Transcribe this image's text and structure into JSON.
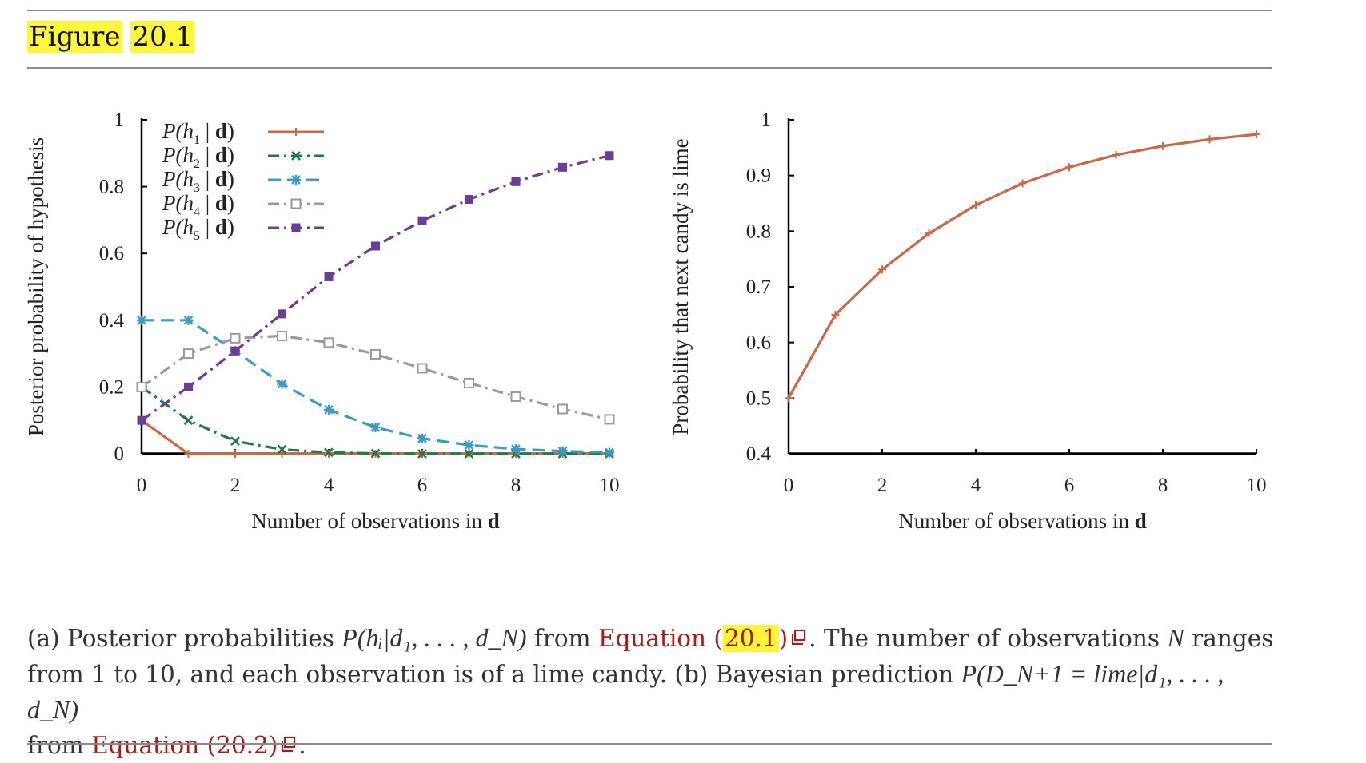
{
  "heading": {
    "word": "Figure",
    "number": "20.1"
  },
  "chart_data": [
    {
      "type": "line",
      "panel_label": "(a)",
      "xlabel_text": "Number of observations in ",
      "xlabel_bold": "d",
      "ylabel": "Posterior probability of hypothesis",
      "xlim": [
        0,
        10
      ],
      "ylim": [
        0,
        1
      ],
      "x_ticks": [
        "0",
        "2",
        "4",
        "6",
        "8",
        "10"
      ],
      "y_ticks": [
        "0",
        "0.2",
        "0.4",
        "0.6",
        "0.8",
        "1"
      ],
      "x": [
        0,
        1,
        2,
        3,
        4,
        5,
        6,
        7,
        8,
        9,
        10
      ],
      "legend_position": "top-left",
      "series": [
        {
          "name": "P(h1 | d)",
          "label_main": "P(h",
          "label_sub": "1",
          "label_bar": " | ",
          "label_bold": "d",
          "label_end": ")",
          "color": "#c8694a",
          "dash": "solid",
          "marker": "plus",
          "values": [
            0.1,
            0.0,
            0.0,
            0.0,
            0.0,
            0.0,
            0.0,
            0.0,
            0.0,
            0.0,
            0.0
          ]
        },
        {
          "name": "P(h2 | d)",
          "label_main": "P(h",
          "label_sub": "2",
          "label_bar": " | ",
          "label_bold": "d",
          "label_end": ")",
          "color": "#1f7a4a",
          "dash": "dashdot",
          "marker": "x",
          "values": [
            0.2,
            0.1,
            0.038,
            0.013,
            0.004,
            0.001,
            0.0,
            0.0,
            0.0,
            0.0,
            0.0
          ]
        },
        {
          "name": "P(h3 | d)",
          "label_main": "P(h",
          "label_sub": "3",
          "label_bar": " | ",
          "label_bold": "d",
          "label_end": ")",
          "color": "#3a9cc4",
          "dash": "dash",
          "marker": "asterisk",
          "values": [
            0.4,
            0.4,
            0.308,
            0.209,
            0.132,
            0.079,
            0.046,
            0.026,
            0.014,
            0.008,
            0.004
          ]
        },
        {
          "name": "P(h4 | d)",
          "label_main": "P(h",
          "label_sub": "4",
          "label_bar": " | ",
          "label_bold": "d",
          "label_end": ")",
          "color": "#9a9a9a",
          "dash": "dashdot",
          "marker": "square-open",
          "values": [
            0.2,
            0.3,
            0.346,
            0.353,
            0.333,
            0.298,
            0.256,
            0.212,
            0.171,
            0.134,
            0.103
          ]
        },
        {
          "name": "P(h5 | d)",
          "label_main": "P(h",
          "label_sub": "5",
          "label_bar": " | ",
          "label_bold": "d",
          "label_end": ")",
          "color": "#6a3d96",
          "dash": "dashdot",
          "marker": "square-filled",
          "values": [
            0.1,
            0.2,
            0.308,
            0.419,
            0.53,
            0.622,
            0.698,
            0.762,
            0.815,
            0.858,
            0.893
          ]
        }
      ]
    },
    {
      "type": "line",
      "panel_label": "(b)",
      "xlabel_text": "Number of observations in ",
      "xlabel_bold": "d",
      "ylabel": "Probability that next candy is lime",
      "xlim": [
        0,
        10
      ],
      "ylim": [
        0.4,
        1
      ],
      "x_ticks": [
        "0",
        "2",
        "4",
        "6",
        "8",
        "10"
      ],
      "y_ticks": [
        "0.4",
        "0.5",
        "0.6",
        "0.7",
        "0.8",
        "0.9",
        "1"
      ],
      "x": [
        0,
        1,
        2,
        3,
        4,
        5,
        6,
        7,
        8,
        9,
        10
      ],
      "series": [
        {
          "color": "#c8694a",
          "dash": "solid",
          "marker": "plus",
          "values": [
            0.5,
            0.65,
            0.731,
            0.796,
            0.847,
            0.886,
            0.915,
            0.937,
            0.953,
            0.965,
            0.974
          ]
        }
      ]
    }
  ],
  "caption": {
    "t1": "(a) Posterior probabilities ",
    "m1": "P(hᵢ|d₁, . . . , d_N)",
    "t2": " from ",
    "link1_a": "Equation (",
    "link1_num": "20.1",
    "link1_b": ")",
    "t3": ". The number of observations ",
    "m2": "N",
    "t4": " ranges from 1 to 10, and each observation is of a lime candy. (b) Bayesian prediction ",
    "m3": "P(D_N+1 = lime|d₁, . . . , d_N)",
    "t5": "from ",
    "link2": "Equation (20.2)",
    "t6": "."
  }
}
